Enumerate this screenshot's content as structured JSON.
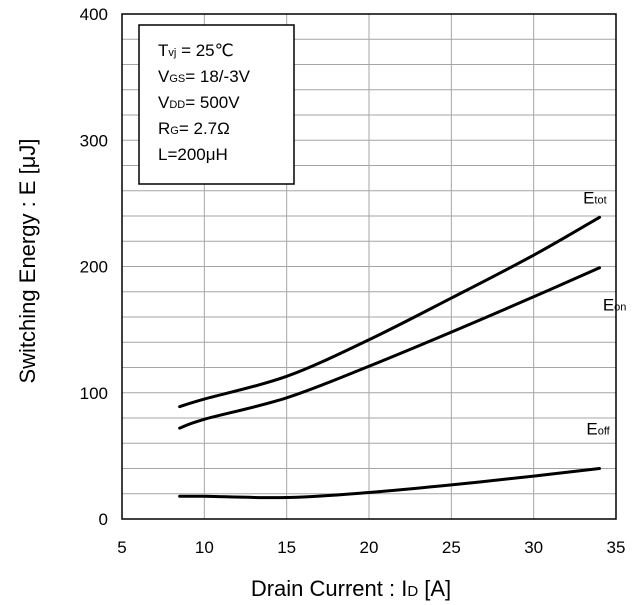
{
  "chart_data": {
    "type": "line",
    "xlabel": {
      "main": "Drain Current : I",
      "sub": "D",
      "unit": " [A]"
    },
    "ylabel": "Switching Energy : E [μJ]",
    "xlim": [
      5,
      35
    ],
    "ylim": [
      0,
      400
    ],
    "x_ticks": [
      5,
      10,
      15,
      20,
      25,
      30,
      35
    ],
    "y_ticks": [
      0,
      100,
      200,
      300,
      400
    ],
    "grid": {
      "x_major": 5,
      "y_minor": 20
    },
    "conditions": [
      {
        "main": "T",
        "sub": "vj",
        "rest": " = 25℃"
      },
      {
        "main": "V",
        "sub": "GS",
        "rest": "= 18/-3V"
      },
      {
        "main": "V",
        "sub": "DD",
        "rest": "= 500V"
      },
      {
        "main": "R",
        "sub": "G",
        "rest": "= 2.7Ω"
      },
      {
        "main": "L=200μH",
        "sub": "",
        "rest": ""
      }
    ],
    "series": [
      {
        "name": "E",
        "sub": "tot",
        "label_at": [
          33.0,
          250
        ],
        "points": [
          [
            8.5,
            89
          ],
          [
            10,
            95
          ],
          [
            15,
            113
          ],
          [
            20,
            142
          ],
          [
            25,
            175
          ],
          [
            30,
            209
          ],
          [
            34,
            239
          ]
        ]
      },
      {
        "name": "E",
        "sub": "on",
        "label_at": [
          34.2,
          165
        ],
        "points": [
          [
            8.5,
            72
          ],
          [
            10,
            79
          ],
          [
            15,
            96
          ],
          [
            20,
            121
          ],
          [
            25,
            148
          ],
          [
            30,
            176
          ],
          [
            34,
            199
          ]
        ]
      },
      {
        "name": "E",
        "sub": "off",
        "label_at": [
          33.2,
          67
        ],
        "points": [
          [
            8.5,
            18
          ],
          [
            10,
            18
          ],
          [
            15,
            17
          ],
          [
            20,
            21
          ],
          [
            25,
            27
          ],
          [
            30,
            34
          ],
          [
            34,
            40
          ]
        ]
      }
    ]
  }
}
